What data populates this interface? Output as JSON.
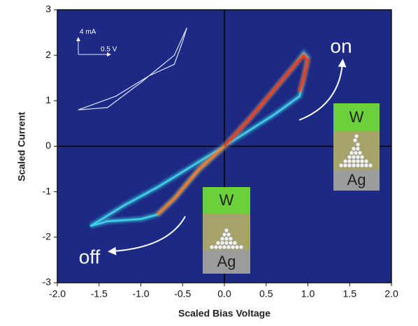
{
  "chart_data": {
    "type": "line",
    "x_label": "Scaled Bias Voltage",
    "y_label": "Scaled Current",
    "xlim": [
      -2,
      2
    ],
    "ylim": [
      -3,
      3
    ],
    "xticks": [
      {
        "value": -2,
        "label": "-2.0"
      },
      {
        "value": -1.5,
        "label": "-1.5"
      },
      {
        "value": -1,
        "label": "-1.0"
      },
      {
        "value": -0.5,
        "label": "-0.5"
      },
      {
        "value": 0,
        "label": "0.0"
      },
      {
        "value": 0.5,
        "label": "0.5"
      },
      {
        "value": 1,
        "label": "1.0"
      },
      {
        "value": 1.5,
        "label": "1.5"
      },
      {
        "value": 2,
        "label": "2.0"
      }
    ],
    "yticks": [
      -3,
      -2,
      -1,
      0,
      1,
      2,
      3
    ],
    "background": "#1c2a86",
    "series": [
      {
        "color": "#3fd2e6",
        "x": [
          0,
          0.3,
          0.6,
          0.85,
          0.95,
          1.0,
          0.95,
          0.9,
          0.6,
          0.3,
          0,
          -0.3,
          -0.6,
          -0.8,
          -1.0,
          -1.4,
          -1.6,
          -1.2,
          -0.8,
          -0.4,
          0
        ],
        "y": [
          0,
          0.6,
          1.25,
          1.8,
          2.05,
          1.95,
          1.5,
          1.1,
          0.7,
          0.35,
          0,
          -0.5,
          -1.15,
          -1.5,
          -1.6,
          -1.65,
          -1.75,
          -1.3,
          -0.9,
          -0.45,
          0
        ]
      },
      {
        "color": "#ff3a10",
        "x": [
          0,
          0.3,
          0.6,
          0.85,
          0.95,
          1.0,
          0.95,
          0.9
        ],
        "y": [
          0,
          0.6,
          1.25,
          1.8,
          2.0,
          1.9,
          1.5,
          1.2
        ]
      },
      {
        "color": "#ff7a20",
        "x": [
          0,
          -0.3,
          -0.6,
          -0.8
        ],
        "y": [
          0,
          -0.5,
          -1.15,
          -1.5
        ]
      },
      {
        "color": "#dfe6ff",
        "x": [
          -1.75,
          -1.4,
          -1.0,
          -0.6,
          -0.45,
          -0.5,
          -0.6,
          -0.9,
          -1.3,
          -1.75
        ],
        "y": [
          0.8,
          0.85,
          1.4,
          2.0,
          2.6,
          2.3,
          1.8,
          1.55,
          1.1,
          0.8
        ]
      }
    ],
    "annotations": [
      "on",
      "off",
      "4 mA",
      "0.5 V"
    ],
    "insets": [
      {
        "top": "W",
        "bottom": "Ag"
      },
      {
        "top": "W",
        "bottom": "Ag"
      }
    ]
  }
}
